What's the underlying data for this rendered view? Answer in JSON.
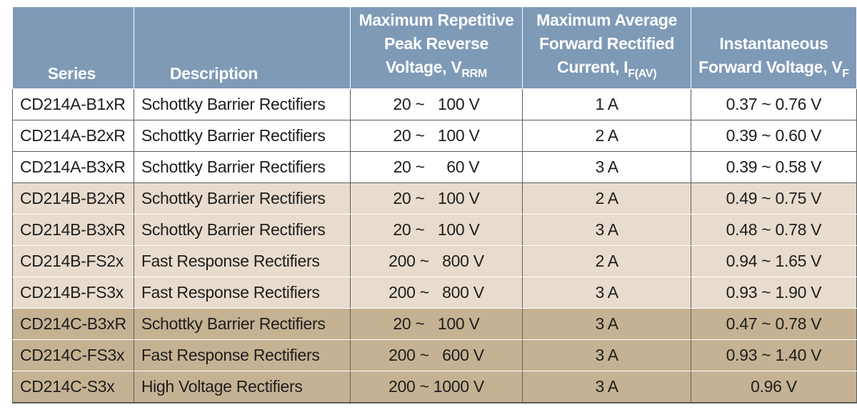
{
  "header": {
    "series": "Series",
    "description": "Description",
    "vrrm_line1": "Maximum Repetitive",
    "vrrm_line2": "Peak Reverse",
    "vrrm_line3": "Voltage, V",
    "vrrm_sub": "RRM",
    "ifav_line1": "Maximum Average",
    "ifav_line2": "Forward Rectified",
    "ifav_line3": "Current, I",
    "ifav_sub": "F(AV)",
    "vf_line1": "Instantaneous",
    "vf_line2": "Forward Voltage, V",
    "vf_sub": "F"
  },
  "rows": [
    {
      "series": "CD214A-B1xR",
      "description": "Schottky Barrier Rectifiers",
      "vrrm": "20 ~   100 V",
      "ifav": "1 A",
      "vf": "0.37 ~ 0.76 V",
      "group": "A"
    },
    {
      "series": "CD214A-B2xR",
      "description": "Schottky Barrier Rectifiers",
      "vrrm": "20 ~   100 V",
      "ifav": "2 A",
      "vf": "0.39 ~ 0.60 V",
      "group": "A"
    },
    {
      "series": "CD214A-B3xR",
      "description": "Schottky Barrier Rectifiers",
      "vrrm": "20 ~     60 V",
      "ifav": "3 A",
      "vf": "0.39 ~ 0.58 V",
      "group": "A"
    },
    {
      "series": "CD214B-B2xR",
      "description": "Schottky Barrier Rectifiers",
      "vrrm": "20 ~   100 V",
      "ifav": "2 A",
      "vf": "0.49 ~ 0.75 V",
      "group": "B"
    },
    {
      "series": "CD214B-B3xR",
      "description": "Schottky Barrier Rectifiers",
      "vrrm": "20 ~   100 V",
      "ifav": "3 A",
      "vf": "0.48 ~ 0.78 V",
      "group": "B"
    },
    {
      "series": "CD214B-FS2x",
      "description": "Fast Response Rectifiers",
      "vrrm": "200 ~   800 V",
      "ifav": "2 A",
      "vf": "0.94 ~ 1.65 V",
      "group": "B"
    },
    {
      "series": "CD214B-FS3x",
      "description": "Fast Response Rectifiers",
      "vrrm": "200 ~   800 V",
      "ifav": "3 A",
      "vf": "0.93 ~ 1.90 V",
      "group": "B"
    },
    {
      "series": "CD214C-B3xR",
      "description": "Schottky Barrier Rectifiers",
      "vrrm": "20 ~   100 V",
      "ifav": "3 A",
      "vf": "0.47 ~ 0.78 V",
      "group": "C"
    },
    {
      "series": "CD214C-FS3x",
      "description": "Fast Response Rectifiers",
      "vrrm": "200 ~   600 V",
      "ifav": "3 A",
      "vf": "0.93 ~ 1.40 V",
      "group": "C"
    },
    {
      "series": "CD214C-S3x",
      "description": "High Voltage Rectifiers",
      "vrrm": "200 ~ 1000 V",
      "ifav": "3 A",
      "vf": "0.96 V",
      "group": "C"
    }
  ]
}
